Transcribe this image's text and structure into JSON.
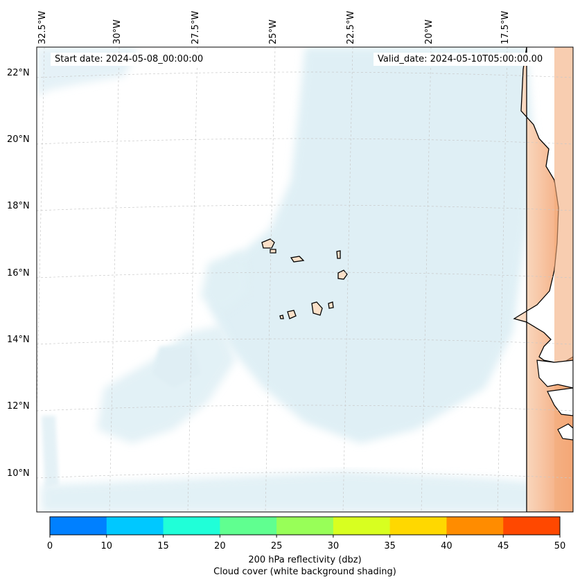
{
  "map": {
    "start_date": "Start date: 2024-05-08_00:00:00",
    "valid_date": "Valid_date: 2024-05-10T05:00:00.00",
    "longitude_labels": [
      "32.5°W",
      "30°W",
      "27.5°W",
      "25°W",
      "22.5°W",
      "20°W",
      "17.5°W"
    ],
    "latitude_labels": [
      "22°N",
      "20°N",
      "18°N",
      "16°N",
      "14°N",
      "12°N",
      "10°N"
    ],
    "extent": {
      "lon_min": -32.5,
      "lon_max": -15.6,
      "lat_min": 8.9,
      "lat_max": 22.8
    },
    "ocean_color": "#ffffff",
    "cloud_color": "#d9ecf3",
    "land_color": "#fbe0c8",
    "dust_color": "#f6a878",
    "coastline_color": "#000000",
    "gridlines": "dashed"
  },
  "colorbar": {
    "ticks": [
      "0",
      "10",
      "15",
      "20",
      "25",
      "30",
      "35",
      "40",
      "45",
      "50"
    ],
    "colors": [
      "#0080ff",
      "#00c8ff",
      "#20ffd8",
      "#60ff90",
      "#98ff58",
      "#d8ff20",
      "#ffd800",
      "#ff8c00",
      "#ff4800"
    ],
    "label_line1": "200 hPa reflectivity (dbz)",
    "label_line2": "Cloud cover (white background shading)"
  }
}
